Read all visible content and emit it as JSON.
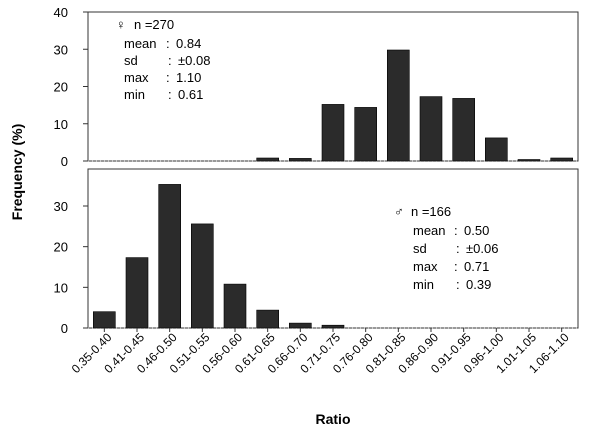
{
  "chart_data": {
    "type": "bar",
    "xlabel": "Ratio",
    "ylabel": "Frequency (%)",
    "categories": [
      "0.35-0.40",
      "0.41-0.45",
      "0.46-0.50",
      "0.51-0.55",
      "0.56-0.60",
      "0.61-0.65",
      "0.66-0.70",
      "0.71-0.75",
      "0.76-0.80",
      "0.81-0.85",
      "0.86-0.90",
      "0.91-0.95",
      "0.96-1.00",
      "1.01-1.05",
      "1.06-1.10"
    ],
    "panels": [
      {
        "name": "female",
        "ylim": [
          0,
          40
        ],
        "yticks": [
          "0",
          "10",
          "20",
          "30",
          "40"
        ],
        "values": [
          0,
          0,
          0,
          0,
          0,
          0.8,
          0.7,
          15.2,
          14.4,
          29.8,
          17.3,
          16.8,
          6.2,
          0.4,
          0.8
        ],
        "stats": {
          "header_symbol": "♀",
          "header": "n =270",
          "lines": [
            {
              "label": "mean",
              "sep": ":",
              "value": "0.84"
            },
            {
              "label": "sd",
              "sep": ":",
              "value": "±0.08"
            },
            {
              "label": "max",
              "sep": ":",
              "value": "1.10"
            },
            {
              "label": "min",
              "sep": ":",
              "value": "0.61"
            }
          ]
        }
      },
      {
        "name": "male",
        "ylim": [
          0,
          40
        ],
        "yticks": [
          "0",
          "10",
          "20",
          "30"
        ],
        "values": [
          4.0,
          17.3,
          35.3,
          25.6,
          10.8,
          4.4,
          1.2,
          0.7,
          0,
          0,
          0,
          0,
          0,
          0,
          0
        ],
        "stats": {
          "header_symbol": "♂",
          "header": "n =166",
          "lines": [
            {
              "label": "mean",
              "sep": ":",
              "value": "0.50"
            },
            {
              "label": "sd",
              "sep": ":",
              "value": "±0.06"
            },
            {
              "label": "max",
              "sep": ":",
              "value": "0.71"
            },
            {
              "label": "min",
              "sep": ":",
              "value": "0.39"
            }
          ]
        }
      }
    ]
  }
}
